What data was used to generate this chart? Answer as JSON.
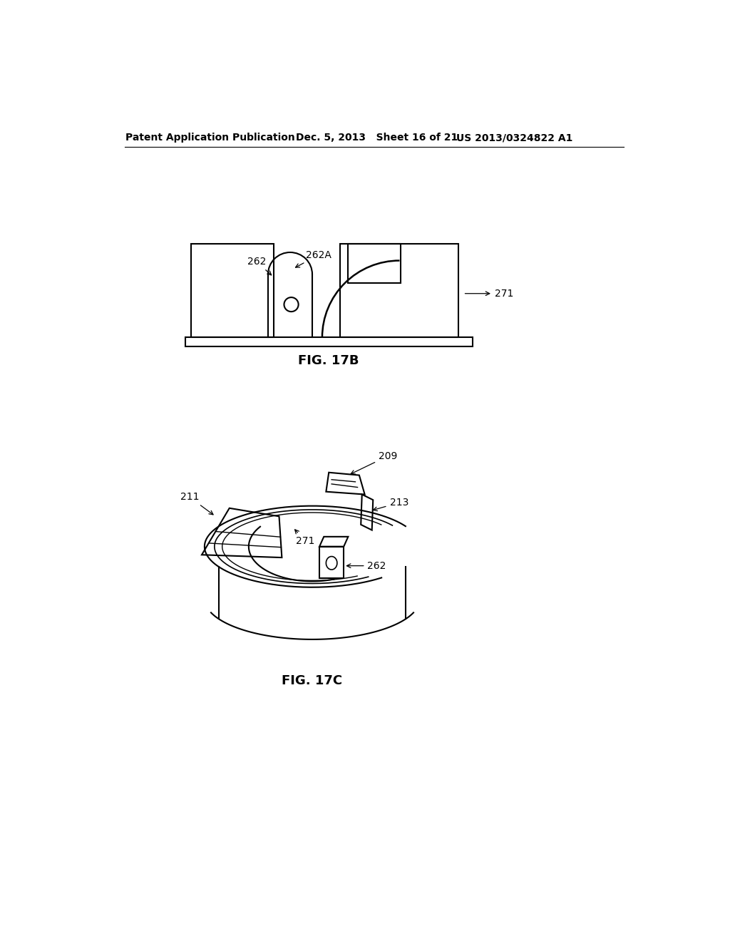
{
  "background_color": "#ffffff",
  "header_left": "Patent Application Publication",
  "header_mid": "Dec. 5, 2013   Sheet 16 of 21",
  "header_right": "US 2013/0324822 A1",
  "fig17b_label": "FIG. 17B",
  "fig17c_label": "FIG. 17C",
  "line_color": "#000000",
  "line_width": 1.5,
  "label_fontsize": 10,
  "header_fontsize": 10
}
